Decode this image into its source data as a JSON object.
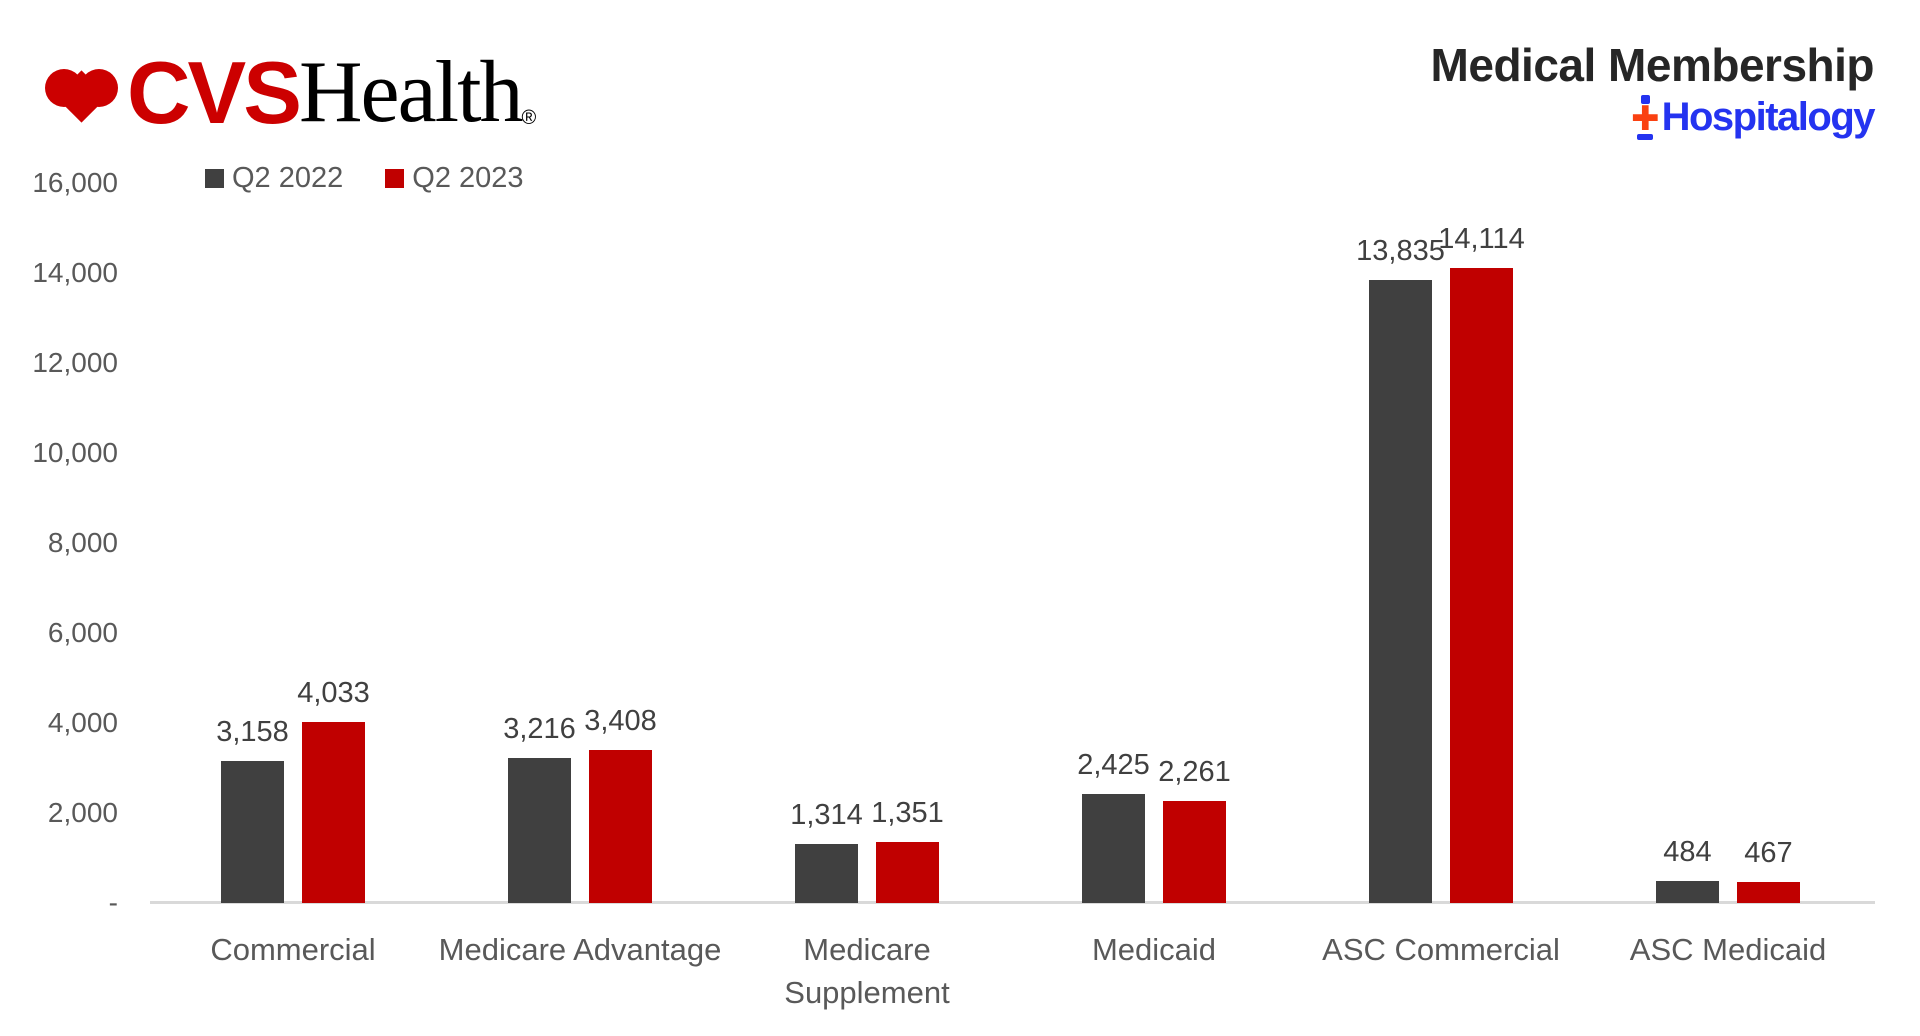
{
  "header": {
    "brand": {
      "cvs": "CVS",
      "health": "Health",
      "registered": "®",
      "heart_color": "#CC0000"
    },
    "title": "Medical Membership",
    "publisher": {
      "name": "Hospitalogy",
      "plus": "✚",
      "text_color": "#2433F0",
      "plus_color": "#FA4111"
    }
  },
  "legend": {
    "items": [
      {
        "label": "Q2 2022",
        "color": "#404040"
      },
      {
        "label": "Q2 2023",
        "color": "#C00000"
      }
    ]
  },
  "chart_data": {
    "type": "bar",
    "title": "Medical Membership",
    "categories": [
      "Commercial",
      "Medicare Advantage",
      "Medicare\nSupplement",
      "Medicaid",
      "ASC Commercial",
      "ASC Medicaid"
    ],
    "series": [
      {
        "name": "Q2 2022",
        "color": "#404040",
        "values": [
          3158,
          3216,
          1314,
          2425,
          13835,
          484
        ]
      },
      {
        "name": "Q2 2023",
        "color": "#C00000",
        "values": [
          4033,
          3408,
          1351,
          2261,
          14114,
          467
        ]
      }
    ],
    "data_labels": [
      [
        "3,158",
        "3,216",
        "1,314",
        "2,425",
        "13,835",
        "484"
      ],
      [
        "4,033",
        "3,408",
        "1,351",
        "2,261",
        "14,114",
        "467"
      ]
    ],
    "ylim": [
      0,
      16000
    ],
    "ytick_step": 2000,
    "yticks": [
      {
        "value": 16000,
        "label": "16,000"
      },
      {
        "value": 14000,
        "label": "14,000"
      },
      {
        "value": 12000,
        "label": "12,000"
      },
      {
        "value": 10000,
        "label": "10,000"
      },
      {
        "value": 8000,
        "label": "8,000"
      },
      {
        "value": 6000,
        "label": "6,000"
      },
      {
        "value": 4000,
        "label": "4,000"
      },
      {
        "value": 2000,
        "label": "2,000"
      },
      {
        "value": 0,
        "label": "-"
      }
    ],
    "grid": false,
    "legend_position": "top-left",
    "axis_line_color": "#d9d9d9"
  }
}
